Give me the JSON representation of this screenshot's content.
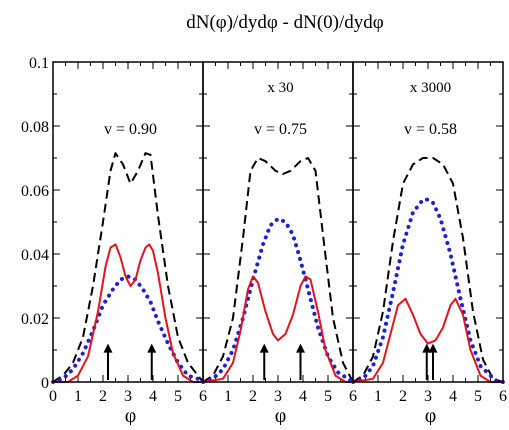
{
  "chart_data": {
    "type": "line",
    "title": "dN(φ)/dydφ - dN(0)/dydφ",
    "ylim": [
      0,
      0.1
    ],
    "yticks": [
      0,
      0.02,
      0.04,
      0.06,
      0.08,
      0.1
    ],
    "ytick_labels": [
      "0",
      "0.02",
      "0.04",
      "0.06",
      "0.08",
      "0.1"
    ],
    "xlim": [
      0,
      6
    ],
    "xticks": [
      0,
      1,
      2,
      3,
      4,
      5,
      6
    ],
    "xtick_labels": [
      "0",
      "1",
      "2",
      "3",
      "4",
      "5",
      "6"
    ],
    "xlabel": "φ",
    "grid": false,
    "colors": {
      "dashed": "#000000",
      "dotted": "#1f1fd6",
      "solid": "#e0141e"
    },
    "panels": [
      {
        "multiplier": "",
        "v_label": "v = 0.90",
        "arrows_x": [
          2.2,
          3.95
        ],
        "series": [
          {
            "style": "dashed",
            "x": [
              0,
              0.4,
              0.8,
              1.2,
              1.6,
              2.0,
              2.3,
              2.5,
              2.8,
              3.1,
              3.4,
              3.7,
              3.9,
              4.2,
              4.6,
              5.0,
              5.4,
              5.8,
              6.0
            ],
            "y": [
              0.0,
              0.002,
              0.006,
              0.014,
              0.03,
              0.05,
              0.066,
              0.0715,
              0.068,
              0.062,
              0.066,
              0.0715,
              0.071,
              0.052,
              0.03,
              0.014,
              0.006,
              0.002,
              0.0
            ]
          },
          {
            "style": "dotted",
            "x": [
              0,
              0.4,
              0.8,
              1.2,
              1.6,
              2.0,
              2.4,
              2.7,
              3.0,
              3.3,
              3.6,
              3.9,
              4.2,
              4.6,
              5.0,
              5.4,
              5.8,
              6.0
            ],
            "y": [
              0.0,
              0.001,
              0.004,
              0.009,
              0.016,
              0.024,
              0.029,
              0.032,
              0.033,
              0.032,
              0.029,
              0.025,
              0.019,
              0.012,
              0.006,
              0.002,
              0.001,
              0.0
            ]
          },
          {
            "style": "solid",
            "x": [
              0,
              0.6,
              1.0,
              1.4,
              1.8,
              2.1,
              2.3,
              2.5,
              2.7,
              2.9,
              3.1,
              3.3,
              3.5,
              3.7,
              3.85,
              4.0,
              4.2,
              4.5,
              4.8,
              5.2,
              5.6,
              6.0
            ],
            "y": [
              0.0,
              0.0,
              0.002,
              0.008,
              0.022,
              0.036,
              0.042,
              0.043,
              0.039,
              0.033,
              0.03,
              0.032,
              0.038,
              0.042,
              0.043,
              0.041,
              0.034,
              0.02,
              0.009,
              0.002,
              0.0,
              0.0
            ]
          }
        ]
      },
      {
        "multiplier": "x 30",
        "v_label": "v = 0.75",
        "arrows_x": [
          2.45,
          3.9
        ],
        "series": [
          {
            "style": "dashed",
            "x": [
              0,
              0.4,
              0.8,
              1.2,
              1.6,
              1.9,
              2.2,
              2.5,
              2.9,
              3.2,
              3.5,
              3.9,
              4.2,
              4.5,
              4.8,
              5.2,
              5.6,
              6.0
            ],
            "y": [
              0.0,
              0.002,
              0.008,
              0.02,
              0.045,
              0.066,
              0.07,
              0.069,
              0.066,
              0.065,
              0.066,
              0.069,
              0.07,
              0.066,
              0.046,
              0.02,
              0.006,
              0.0
            ]
          },
          {
            "style": "dotted",
            "x": [
              0,
              0.4,
              0.8,
              1.2,
              1.6,
              2.0,
              2.4,
              2.7,
              3.0,
              3.3,
              3.6,
              3.9,
              4.2,
              4.6,
              5.0,
              5.4,
              5.8,
              6.0
            ],
            "y": [
              0.0,
              0.001,
              0.004,
              0.01,
              0.02,
              0.032,
              0.043,
              0.049,
              0.051,
              0.05,
              0.046,
              0.038,
              0.029,
              0.017,
              0.008,
              0.003,
              0.001,
              0.0
            ]
          },
          {
            "style": "solid",
            "x": [
              0,
              0.8,
              1.2,
              1.5,
              1.8,
              2.0,
              2.2,
              2.5,
              2.8,
              3.0,
              3.3,
              3.6,
              3.9,
              4.1,
              4.3,
              4.6,
              4.9,
              5.3,
              5.7,
              6.0
            ],
            "y": [
              0.0,
              0.001,
              0.006,
              0.016,
              0.029,
              0.033,
              0.031,
              0.022,
              0.015,
              0.013,
              0.015,
              0.021,
              0.03,
              0.033,
              0.032,
              0.022,
              0.01,
              0.002,
              0.0,
              0.0
            ]
          }
        ]
      },
      {
        "multiplier": "x 3000",
        "v_label": "v = 0.58",
        "arrows_x": [
          2.95,
          3.2
        ],
        "series": [
          {
            "style": "dashed",
            "x": [
              0,
              0.4,
              0.8,
              1.2,
              1.6,
              2.0,
              2.4,
              2.8,
              3.2,
              3.6,
              4.0,
              4.4,
              4.8,
              5.2,
              5.6,
              6.0
            ],
            "y": [
              0.0,
              0.002,
              0.008,
              0.022,
              0.044,
              0.062,
              0.068,
              0.07,
              0.07,
              0.068,
              0.062,
              0.045,
              0.022,
              0.007,
              0.001,
              0.0
            ]
          },
          {
            "style": "dotted",
            "x": [
              0,
              0.4,
              0.8,
              1.2,
              1.6,
              2.0,
              2.4,
              2.8,
              3.0,
              3.2,
              3.5,
              3.9,
              4.3,
              4.7,
              5.1,
              5.5,
              5.8,
              6.0
            ],
            "y": [
              0.0,
              0.001,
              0.005,
              0.014,
              0.028,
              0.043,
              0.053,
              0.057,
              0.057,
              0.056,
              0.051,
              0.04,
              0.026,
              0.013,
              0.005,
              0.002,
              0.0,
              0.0
            ]
          },
          {
            "style": "solid",
            "x": [
              0,
              0.8,
              1.2,
              1.5,
              1.8,
              2.1,
              2.4,
              2.7,
              3.0,
              3.3,
              3.6,
              3.9,
              4.1,
              4.4,
              4.7,
              5.1,
              5.5,
              6.0
            ],
            "y": [
              0.0,
              0.001,
              0.006,
              0.015,
              0.024,
              0.026,
              0.021,
              0.015,
              0.012,
              0.013,
              0.017,
              0.024,
              0.026,
              0.021,
              0.01,
              0.002,
              0.0,
              0.0
            ]
          }
        ]
      }
    ]
  }
}
